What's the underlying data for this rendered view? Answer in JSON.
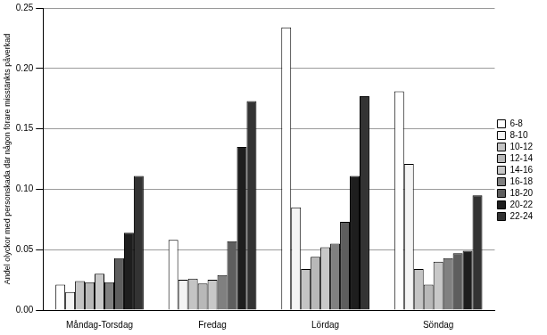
{
  "chart_data": {
    "type": "bar",
    "y_label": "Andel olyckor med personskada där någon förare misstänkts påverkad",
    "categories": [
      "Måndag-Torsdag",
      "Fredag",
      "Lördag",
      "Söndag"
    ],
    "series": [
      {
        "name": "6-8",
        "color": "#ffffff",
        "values": [
          0.021,
          0.058,
          0.234,
          0.181
        ]
      },
      {
        "name": "8-10",
        "color": "#f4f4f4",
        "values": [
          0.015,
          0.025,
          0.085,
          0.121
        ]
      },
      {
        "name": "10-12",
        "color": "#c4c4c4",
        "values": [
          0.024,
          0.026,
          0.034,
          0.034
        ]
      },
      {
        "name": "12-14",
        "color": "#b8b8b8",
        "values": [
          0.023,
          0.022,
          0.044,
          0.021
        ]
      },
      {
        "name": "14-16",
        "color": "#c8c8c8",
        "values": [
          0.03,
          0.025,
          0.052,
          0.04
        ]
      },
      {
        "name": "16-18",
        "color": "#808080",
        "values": [
          0.023,
          0.029,
          0.055,
          0.043
        ]
      },
      {
        "name": "18-20",
        "color": "#5e5e5e",
        "values": [
          0.043,
          0.057,
          0.073,
          0.047
        ]
      },
      {
        "name": "20-22",
        "color": "#1e1e1e",
        "values": [
          0.064,
          0.135,
          0.111,
          0.049
        ]
      },
      {
        "name": "22-24",
        "color": "#333333",
        "values": [
          0.111,
          0.173,
          0.177,
          0.095
        ]
      }
    ],
    "ylim": [
      0,
      0.25
    ],
    "yticks": [
      {
        "value": 0,
        "label": "0.00"
      },
      {
        "value": 0.05,
        "label": "0.05"
      },
      {
        "value": 0.1,
        "label": "0.10"
      },
      {
        "value": 0.15,
        "label": "0.15"
      },
      {
        "value": 0.2,
        "label": "0.20"
      },
      {
        "value": 0.25,
        "label": "0.25"
      }
    ],
    "grid": true,
    "legend": "right"
  }
}
